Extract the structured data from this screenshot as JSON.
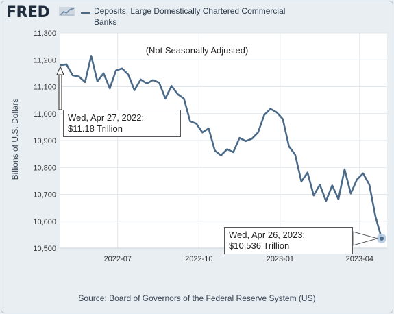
{
  "brand": {
    "logo_text": "FRED",
    "logo_icon": "fred-graph-icon"
  },
  "legend": {
    "series_label": "Deposits, Large Domestically Chartered Commercial Banks",
    "line_color": "#4b6a88"
  },
  "annotations": {
    "note": "(Not Seasonally Adjusted)",
    "start_callout": {
      "date": "Wed, Apr 27, 2022:",
      "value": "$11.18 Trillion"
    },
    "end_callout": {
      "date": "Wed, Apr 26, 2023:",
      "value": "$10.536 Trillion"
    }
  },
  "footer": {
    "source": "Source: Board of Governors of the Federal Reserve System (US)"
  },
  "chart_data": {
    "type": "line",
    "title": "",
    "ylabel": "Billions of U.S. Dollars",
    "xlabel": "",
    "ylim": [
      10500,
      11300
    ],
    "yticks": [
      10500,
      10600,
      10700,
      10800,
      10900,
      11000,
      11100,
      11200,
      11300
    ],
    "ytick_labels": [
      "10,500",
      "10,600",
      "10,700",
      "10,800",
      "10,900",
      "11,000",
      "11,100",
      "11,200",
      "11,300"
    ],
    "xlim": [
      "2022-04-27",
      "2023-04-26"
    ],
    "xticks": [
      "2022-07-01",
      "2022-10-01",
      "2023-01-01",
      "2023-04-01"
    ],
    "xtick_labels": [
      "2022-07",
      "2022-10",
      "2023-01",
      "2023-04"
    ],
    "grid": true,
    "series": [
      {
        "name": "Deposits, Large Domestically Chartered Commercial Banks",
        "x": [
          "2022-04-27",
          "2022-05-04",
          "2022-05-11",
          "2022-05-18",
          "2022-05-25",
          "2022-06-01",
          "2022-06-08",
          "2022-06-15",
          "2022-06-22",
          "2022-06-29",
          "2022-07-06",
          "2022-07-13",
          "2022-07-20",
          "2022-07-27",
          "2022-08-03",
          "2022-08-10",
          "2022-08-17",
          "2022-08-24",
          "2022-08-31",
          "2022-09-07",
          "2022-09-14",
          "2022-09-21",
          "2022-09-28",
          "2022-10-05",
          "2022-10-12",
          "2022-10-19",
          "2022-10-26",
          "2022-11-02",
          "2022-11-09",
          "2022-11-16",
          "2022-11-23",
          "2022-11-30",
          "2022-12-07",
          "2022-12-14",
          "2022-12-21",
          "2022-12-28",
          "2023-01-04",
          "2023-01-11",
          "2023-01-18",
          "2023-01-25",
          "2023-02-01",
          "2023-02-08",
          "2023-02-15",
          "2023-02-22",
          "2023-03-01",
          "2023-03-08",
          "2023-03-15",
          "2023-03-22",
          "2023-03-29",
          "2023-04-05",
          "2023-04-12",
          "2023-04-19",
          "2023-04-26"
        ],
        "values": [
          11180,
          11183,
          11142,
          11138,
          11117,
          11215,
          11120,
          11150,
          11094,
          11160,
          11168,
          11145,
          11087,
          11127,
          11112,
          11125,
          11115,
          11056,
          11103,
          11072,
          11056,
          10972,
          10963,
          10930,
          10945,
          10863,
          10845,
          10868,
          10857,
          10910,
          10898,
          10907,
          10930,
          10995,
          11018,
          11005,
          10980,
          10878,
          10848,
          10748,
          10781,
          10696,
          10736,
          10675,
          10733,
          10682,
          10793,
          10703,
          10755,
          10778,
          10736,
          10617,
          10536
        ]
      }
    ]
  }
}
